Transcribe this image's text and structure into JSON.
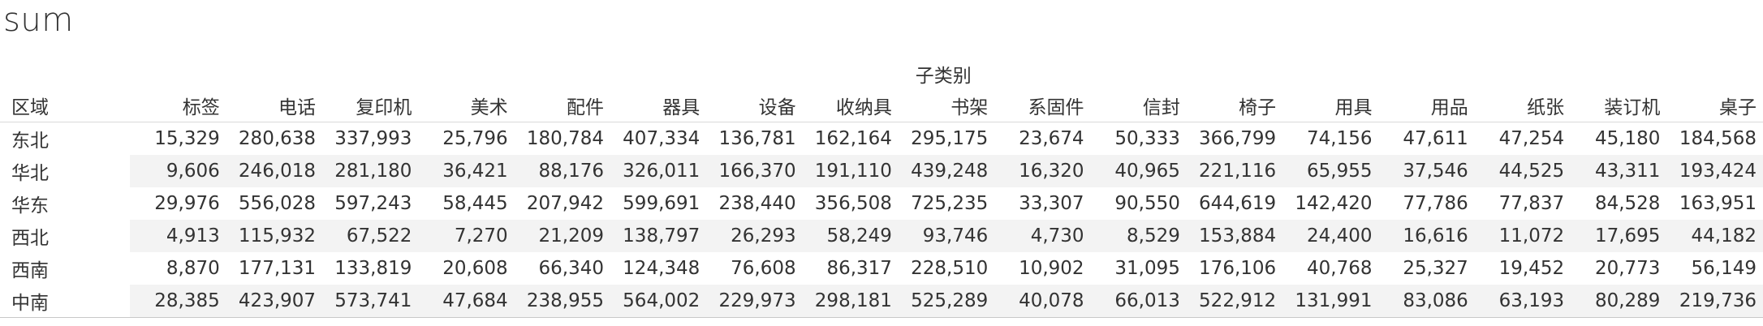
{
  "title": "sum",
  "table": {
    "group_header": "子类别",
    "row_header": "区域",
    "columns": [
      "标签",
      "电话",
      "复印机",
      "美术",
      "配件",
      "器具",
      "设备",
      "收纳具",
      "书架",
      "系固件",
      "信封",
      "椅子",
      "用具",
      "用品",
      "纸张",
      "装订机",
      "桌子"
    ],
    "rows": [
      {
        "region": "东北",
        "values": [
          "15,329",
          "280,638",
          "337,993",
          "25,796",
          "180,784",
          "407,334",
          "136,781",
          "162,164",
          "295,175",
          "23,674",
          "50,333",
          "366,799",
          "74,156",
          "47,611",
          "47,254",
          "45,180",
          "184,568"
        ]
      },
      {
        "region": "华北",
        "values": [
          "9,606",
          "246,018",
          "281,180",
          "36,421",
          "88,176",
          "326,011",
          "166,370",
          "191,110",
          "439,248",
          "16,320",
          "40,965",
          "221,116",
          "65,955",
          "37,546",
          "44,525",
          "43,311",
          "193,424"
        ]
      },
      {
        "region": "华东",
        "values": [
          "29,976",
          "556,028",
          "597,243",
          "58,445",
          "207,942",
          "599,691",
          "238,440",
          "356,508",
          "725,235",
          "33,307",
          "90,550",
          "644,619",
          "142,420",
          "77,786",
          "77,837",
          "84,528",
          "163,951"
        ]
      },
      {
        "region": "西北",
        "values": [
          "4,913",
          "115,932",
          "67,522",
          "7,270",
          "21,209",
          "138,797",
          "26,293",
          "58,249",
          "93,746",
          "4,730",
          "8,529",
          "153,884",
          "24,400",
          "16,616",
          "11,072",
          "17,695",
          "44,182"
        ]
      },
      {
        "region": "西南",
        "values": [
          "8,870",
          "177,131",
          "133,819",
          "20,608",
          "66,340",
          "124,348",
          "76,608",
          "86,317",
          "228,510",
          "10,902",
          "31,095",
          "176,106",
          "40,768",
          "25,327",
          "19,452",
          "20,773",
          "56,149"
        ]
      },
      {
        "region": "中南",
        "values": [
          "28,385",
          "423,907",
          "573,741",
          "47,684",
          "238,955",
          "564,002",
          "229,973",
          "298,181",
          "525,289",
          "40,078",
          "66,013",
          "522,912",
          "131,991",
          "83,086",
          "63,193",
          "80,289",
          "219,736"
        ]
      }
    ]
  }
}
